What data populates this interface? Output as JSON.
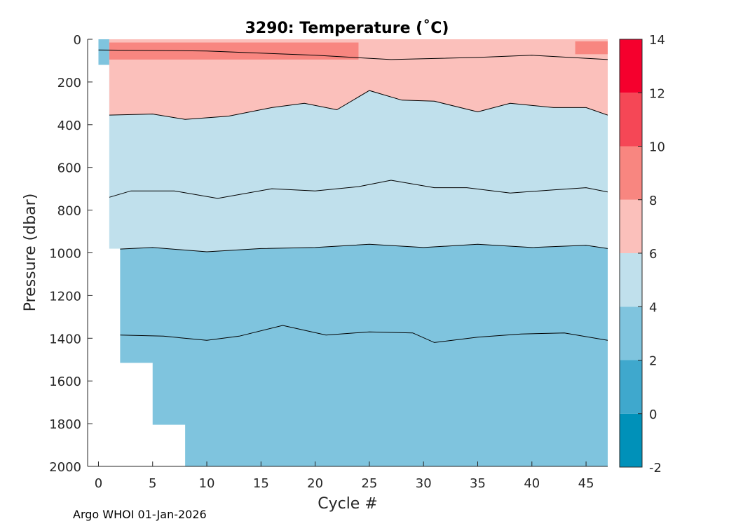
{
  "chart_data": {
    "type": "heatmap",
    "subtype": "filled-contour",
    "title": "3290:  Temperature (˚C)",
    "xlabel": "Cycle #",
    "ylabel": "Pressure (dbar)",
    "xlim": [
      -1,
      47
    ],
    "ylim": [
      0,
      2000
    ],
    "y_reversed": true,
    "x_ticks": [
      0,
      5,
      10,
      15,
      20,
      25,
      30,
      35,
      40,
      45
    ],
    "y_ticks": [
      0,
      200,
      400,
      600,
      800,
      1000,
      1200,
      1400,
      1600,
      1800,
      2000
    ],
    "colorbar": {
      "ticks": [
        14,
        12,
        10,
        8,
        6,
        4,
        2,
        0,
        -2
      ],
      "levels": [
        {
          "min": -2,
          "max": 0,
          "color": "#0091b9"
        },
        {
          "min": 0,
          "max": 2,
          "color": "#3fa8cd"
        },
        {
          "min": 2,
          "max": 4,
          "color": "#7fc4de"
        },
        {
          "min": 4,
          "max": 6,
          "color": "#c0e0ec"
        },
        {
          "min": 6,
          "max": 8,
          "color": "#fbc0bb"
        },
        {
          "min": 8,
          "max": 10,
          "color": "#f88680"
        },
        {
          "min": 10,
          "max": 12,
          "color": "#f54756"
        },
        {
          "min": 12,
          "max": 14,
          "color": "#f5002d"
        }
      ]
    },
    "profile_max_pressure": [
      {
        "cycles": [
          0,
          1
        ],
        "max_pressure": 120
      },
      {
        "cycles": [
          1,
          2
        ],
        "max_pressure": 980
      },
      {
        "cycles": [
          2,
          5
        ],
        "max_pressure": 1515
      },
      {
        "cycles": [
          5,
          8
        ],
        "max_pressure": 1805
      },
      {
        "cycles": [
          8,
          47
        ],
        "max_pressure": 2010
      }
    ],
    "isotherms": [
      {
        "temperature": 8,
        "cycles": [
          0,
          10,
          20,
          27,
          35,
          40,
          47
        ],
        "pressure": [
          50,
          55,
          75,
          95,
          85,
          75,
          95
        ]
      },
      {
        "temperature": 6,
        "cycles": [
          1,
          5,
          8,
          12,
          16,
          19,
          22,
          25,
          28,
          31,
          35,
          38,
          42,
          45,
          47
        ],
        "pressure": [
          355,
          350,
          375,
          360,
          320,
          300,
          330,
          240,
          285,
          290,
          340,
          300,
          320,
          320,
          355
        ]
      },
      {
        "temperature": 5,
        "cycles": [
          1,
          3,
          7,
          11,
          16,
          20,
          24,
          27,
          31,
          34,
          38,
          42,
          45,
          47
        ],
        "pressure": [
          740,
          710,
          710,
          745,
          700,
          710,
          690,
          660,
          695,
          695,
          720,
          705,
          695,
          715
        ]
      },
      {
        "temperature": 4,
        "cycles": [
          1,
          5,
          10,
          15,
          20,
          25,
          30,
          35,
          40,
          45,
          47
        ],
        "pressure": [
          985,
          975,
          995,
          980,
          975,
          960,
          975,
          960,
          975,
          965,
          980
        ]
      },
      {
        "temperature": 3,
        "cycles": [
          2,
          6,
          10,
          13,
          17,
          21,
          25,
          29,
          31,
          35,
          39,
          43,
          47
        ],
        "pressure": [
          1385,
          1390,
          1410,
          1390,
          1340,
          1385,
          1370,
          1375,
          1420,
          1395,
          1380,
          1375,
          1410
        ]
      }
    ],
    "warm_patches": [
      {
        "level_min": 8,
        "cycles": [
          1,
          24
        ],
        "pressure": [
          15,
          95
        ]
      },
      {
        "level_min": 8,
        "cycles": [
          44,
          47
        ],
        "pressure": [
          10,
          70
        ]
      }
    ]
  },
  "footer": {
    "text": "Argo WHOI 01-Jan-2026"
  }
}
